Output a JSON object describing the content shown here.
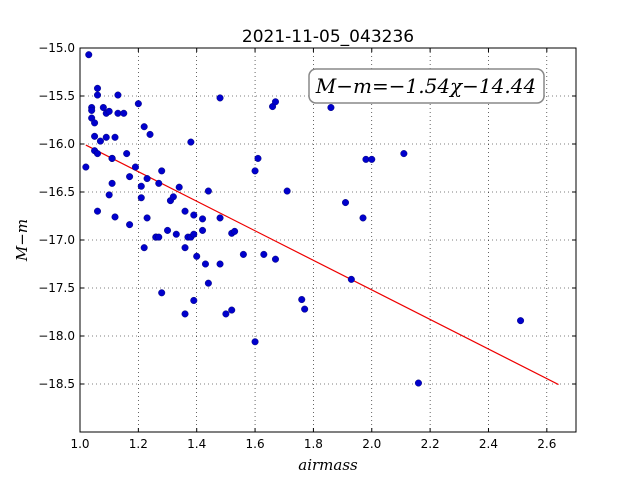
{
  "chart_data": {
    "type": "scatter",
    "title": "2021-11-05_043236",
    "xlabel": "airmass",
    "ylabel": "M−m",
    "xlim": [
      1.0,
      2.7
    ],
    "ylim": [
      -19.0,
      -15.0
    ],
    "y_inverted": true,
    "grid": true,
    "xticks": [
      "1.0",
      "1.2",
      "1.4",
      "1.6",
      "1.8",
      "2.0",
      "2.2",
      "2.4",
      "2.6"
    ],
    "yticks": [
      "−15.0",
      "−15.5",
      "−16.0",
      "−16.5",
      "−17.0",
      "−17.5",
      "−18.0",
      "−18.5"
    ],
    "annotation": "M−m=−1.54χ−14.44",
    "colors": {
      "points": "#0000cc",
      "fit": "#ee0000"
    },
    "fit": {
      "slope": -1.54,
      "intercept": -14.44,
      "x_range": [
        1.02,
        2.64
      ]
    },
    "points": [
      [
        1.02,
        -16.24
      ],
      [
        1.03,
        -15.07
      ],
      [
        1.04,
        -15.62
      ],
      [
        1.04,
        -15.65
      ],
      [
        1.04,
        -15.73
      ],
      [
        1.05,
        -15.78
      ],
      [
        1.05,
        -15.92
      ],
      [
        1.05,
        -16.07
      ],
      [
        1.06,
        -16.1
      ],
      [
        1.06,
        -15.49
      ],
      [
        1.06,
        -15.42
      ],
      [
        1.06,
        -16.7
      ],
      [
        1.07,
        -15.97
      ],
      [
        1.08,
        -15.62
      ],
      [
        1.09,
        -15.68
      ],
      [
        1.09,
        -15.93
      ],
      [
        1.1,
        -15.66
      ],
      [
        1.1,
        -16.53
      ],
      [
        1.11,
        -16.15
      ],
      [
        1.11,
        -16.15
      ],
      [
        1.11,
        -16.41
      ],
      [
        1.12,
        -15.93
      ],
      [
        1.12,
        -16.76
      ],
      [
        1.13,
        -15.68
      ],
      [
        1.13,
        -15.49
      ],
      [
        1.15,
        -15.68
      ],
      [
        1.16,
        -16.1
      ],
      [
        1.17,
        -16.34
      ],
      [
        1.17,
        -16.84
      ],
      [
        1.19,
        -16.24
      ],
      [
        1.2,
        -15.58
      ],
      [
        1.21,
        -16.44
      ],
      [
        1.21,
        -16.56
      ],
      [
        1.22,
        -15.82
      ],
      [
        1.22,
        -17.08
      ],
      [
        1.23,
        -16.77
      ],
      [
        1.23,
        -16.36
      ],
      [
        1.24,
        -15.9
      ],
      [
        1.26,
        -16.97
      ],
      [
        1.26,
        -16.97
      ],
      [
        1.27,
        -16.41
      ],
      [
        1.27,
        -16.97
      ],
      [
        1.28,
        -16.28
      ],
      [
        1.28,
        -17.55
      ],
      [
        1.3,
        -16.9
      ],
      [
        1.31,
        -16.59
      ],
      [
        1.32,
        -16.55
      ],
      [
        1.33,
        -16.94
      ],
      [
        1.34,
        -16.45
      ],
      [
        1.36,
        -16.7
      ],
      [
        1.36,
        -17.08
      ],
      [
        1.36,
        -17.77
      ],
      [
        1.37,
        -16.97
      ],
      [
        1.38,
        -16.97
      ],
      [
        1.38,
        -15.98
      ],
      [
        1.39,
        -16.94
      ],
      [
        1.39,
        -16.74
      ],
      [
        1.39,
        -17.63
      ],
      [
        1.4,
        -17.17
      ],
      [
        1.42,
        -16.9
      ],
      [
        1.42,
        -16.78
      ],
      [
        1.43,
        -17.25
      ],
      [
        1.44,
        -16.49
      ],
      [
        1.44,
        -17.45
      ],
      [
        1.48,
        -16.77
      ],
      [
        1.48,
        -17.25
      ],
      [
        1.48,
        -15.52
      ],
      [
        1.5,
        -17.77
      ],
      [
        1.52,
        -17.73
      ],
      [
        1.52,
        -16.93
      ],
      [
        1.53,
        -16.91
      ],
      [
        1.56,
        -17.15
      ],
      [
        1.6,
        -16.28
      ],
      [
        1.6,
        -18.06
      ],
      [
        1.61,
        -16.15
      ],
      [
        1.63,
        -17.15
      ],
      [
        1.66,
        -15.61
      ],
      [
        1.67,
        -17.2
      ],
      [
        1.67,
        -15.56
      ],
      [
        1.71,
        -16.49
      ],
      [
        1.76,
        -17.62
      ],
      [
        1.77,
        -17.72
      ],
      [
        1.86,
        -15.62
      ],
      [
        1.91,
        -16.61
      ],
      [
        1.93,
        -17.41
      ],
      [
        1.97,
        -16.77
      ],
      [
        1.98,
        -16.16
      ],
      [
        2.0,
        -16.16
      ],
      [
        2.11,
        -16.1
      ],
      [
        2.16,
        -18.49
      ],
      [
        2.51,
        -17.84
      ]
    ]
  }
}
